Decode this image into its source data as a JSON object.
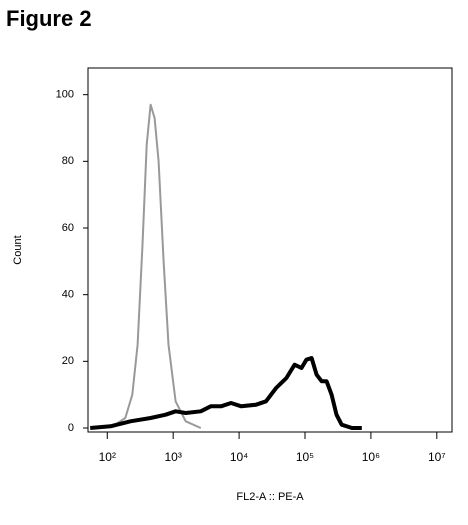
{
  "chart_data": {
    "type": "line",
    "title": "Figure 2",
    "x_label": "FL2-A :: PE-A",
    "y_label": "Count",
    "x_scale": "log",
    "xlim": [
      51,
      17000000
    ],
    "xticks": [
      {
        "value": 100,
        "label": "10²"
      },
      {
        "value": 1000,
        "label": "10³"
      },
      {
        "value": 10000,
        "label": "10⁴"
      },
      {
        "value": 100000,
        "label": "10⁵"
      },
      {
        "value": 1000000,
        "label": "10⁶"
      },
      {
        "value": 10000000,
        "label": "10⁷"
      }
    ],
    "ylim": [
      -1.2,
      108
    ],
    "yticks": [
      0,
      20,
      40,
      60,
      80,
      100
    ],
    "series": [
      {
        "color": "#999999",
        "width": 2,
        "x": [
          66,
          132,
          188,
          240,
          288,
          342,
          396,
          454,
          522,
          601,
          716,
          850,
          1090,
          1550,
          2620
        ],
        "values": [
          0,
          1,
          3,
          10,
          25,
          55,
          85,
          97,
          93,
          80,
          50,
          25,
          8,
          2,
          0
        ]
      },
      {
        "color": "#000000",
        "width": 4,
        "x": [
          55,
          112,
          224,
          454,
          770,
          1090,
          1550,
          2620,
          3710,
          5330,
          7530,
          10800,
          18100,
          25600,
          36500,
          52200,
          69600,
          88600,
          105000,
          126000,
          150000,
          179000,
          213000,
          253000,
          301000,
          360000,
          514000,
          728000
        ],
        "values": [
          0,
          0.5,
          2,
          3,
          4,
          5,
          4.5,
          5,
          6.5,
          6.5,
          7.5,
          6.5,
          7,
          8,
          12,
          15,
          19,
          18,
          20.5,
          21,
          16,
          14,
          14,
          10,
          4,
          1,
          0,
          0
        ]
      }
    ]
  }
}
